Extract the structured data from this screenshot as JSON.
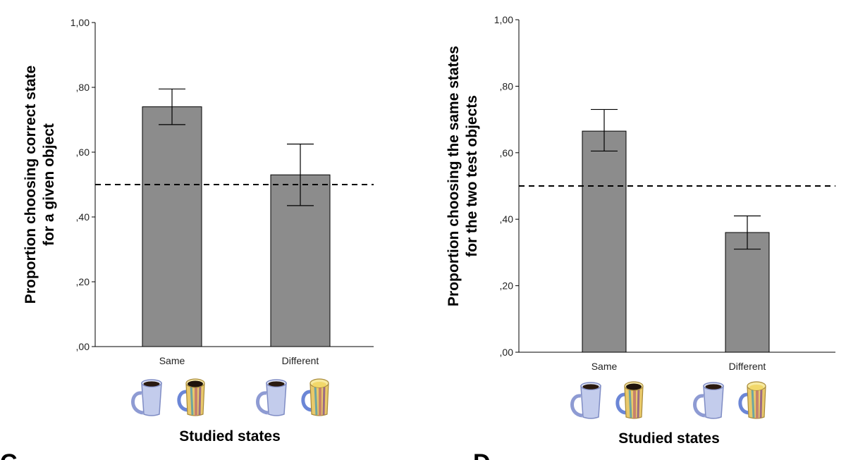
{
  "chart_data": [
    {
      "type": "bar",
      "panel": "C",
      "categories": [
        "Same",
        "Different"
      ],
      "values": [
        0.74,
        0.53
      ],
      "error_low": [
        0.685,
        0.435
      ],
      "error_high": [
        0.795,
        0.625
      ],
      "reference_line": 0.5,
      "ylim": [
        0,
        1
      ],
      "yticks": [
        ",00",
        ",20",
        ",40",
        ",60",
        ",80",
        "1,00"
      ],
      "ylabel_lines": [
        "Proportion choosing correct state",
        "for a given object"
      ],
      "xlabel": "Studied states",
      "bar_color": "#8c8c8c"
    },
    {
      "type": "bar",
      "panel": "D",
      "categories": [
        "Same",
        "Different"
      ],
      "values": [
        0.665,
        0.36
      ],
      "error_low": [
        0.605,
        0.31
      ],
      "error_high": [
        0.73,
        0.41
      ],
      "reference_line": 0.5,
      "ylim": [
        0,
        1
      ],
      "yticks": [
        ",00",
        ",20",
        ",40",
        ",60",
        ",80",
        "1,00"
      ],
      "ylabel_lines": [
        "Proportion choosing the same states",
        "for the two test objects"
      ],
      "xlabel": "Studied states",
      "bar_color": "#8c8c8c"
    }
  ],
  "panel_labels": [
    "C",
    "D"
  ],
  "icons": {
    "same": [
      "mug-coffee-icon",
      "striped-mug-coffee-icon"
    ],
    "different": [
      "mug-coffee-icon",
      "striped-mug-empty-icon"
    ]
  },
  "colors": {
    "coffee": "#2a1a10",
    "mug_blue": "#b8c4e6",
    "stripe_yellow": "#f4e27a"
  }
}
